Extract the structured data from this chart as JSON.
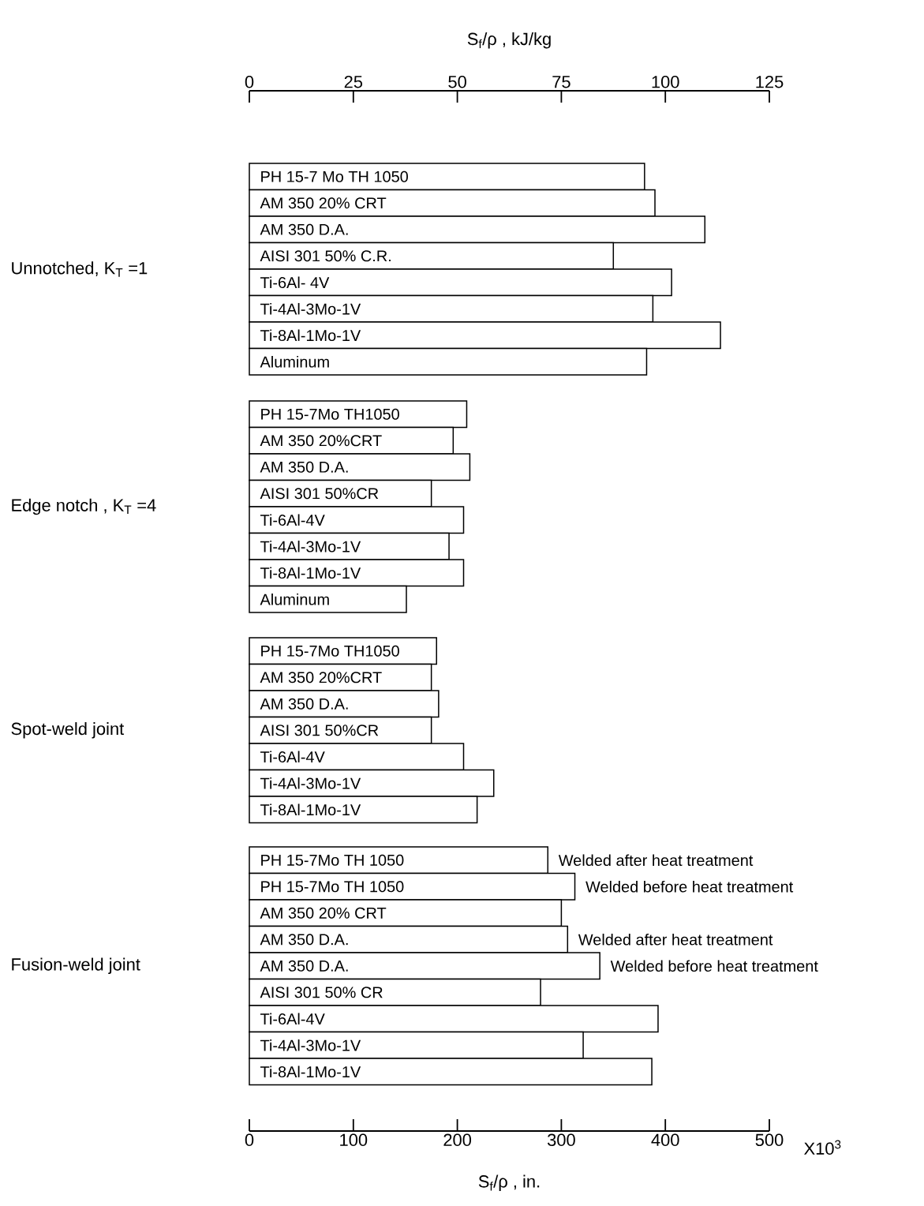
{
  "chart_data": [
    {
      "type": "bar",
      "orientation": "horizontal",
      "ylabel": "Unnotched, K$_{T}$ =1",
      "color": "#ffffff",
      "tick_labels": "x",
      "xlim": [
        0,
        500
      ],
      "x2lim": [
        0,
        125
      ],
      "x2ticks": [
        0,
        25,
        50,
        75,
        100,
        125
      ],
      "x2label": "S$_{f}$/ρ , kJ/kg",
      "categories": [
        "PH 15-7 Mo   TH 1050",
        "AM 350   20% CRT",
        "AM 350   D.A.",
        "AISI 301   50% C.R.",
        "Ti-6Al- 4V",
        "Ti-4Al-3Mo-1V",
        "Ti-8Al-1Mo-1V",
        "Aluminum"
      ],
      "values": [
        380,
        390,
        438,
        350,
        406,
        388,
        453,
        382
      ]
    },
    {
      "type": "bar",
      "orientation": "horizontal",
      "ylabel": "Edge notch , K$_{T}$ =4",
      "color": "#ffffff",
      "tick_labels": false,
      "xlim": [
        0,
        500
      ],
      "categories": [
        "PH 15-7Mo  TH1050",
        "AM 350 20%CRT",
        "AM 350  D.A.",
        "AISI 301 50%CR",
        "Ti-6Al-4V",
        "Ti-4Al-3Mo-1V",
        "Ti-8Al-1Mo-1V",
        "Aluminum"
      ],
      "values": [
        209,
        196,
        212,
        175,
        206,
        192,
        206,
        151
      ]
    },
    {
      "type": "bar",
      "orientation": "horizontal",
      "ylabel": "Spot-weld   joint",
      "color": "#ffffff",
      "tick_labels": false,
      "xlim": [
        0,
        500
      ],
      "categories": [
        "PH 15-7Mo TH1050",
        "AM 350  20%CRT",
        "AM 350  D.A.",
        "AISI 301  50%CR",
        "Ti-6Al-4V",
        "Ti-4Al-3Mo-1V",
        "Ti-8Al-1Mo-1V"
      ],
      "values": [
        180,
        175,
        182,
        175,
        206,
        235,
        219
      ]
    },
    {
      "type": "bar",
      "orientation": "horizontal",
      "ylabel": "Fusion-weld  joint",
      "color": "#ffffff",
      "tick_labels": "x",
      "xlim": [
        0,
        500
      ],
      "xticks": [
        0,
        100,
        200,
        300,
        400,
        500
      ],
      "xlabel": "S$_{f}$/ρ , in.",
      "categories": [
        "PH 15-7Mo  TH 1050",
        "PH 15-7Mo  TH 1050",
        "AM 350  20% CRT",
        "AM 350  D.A.",
        "AM 350  D.A.",
        "AISI 301  50% CR",
        "Ti-6Al-4V",
        "Ti-4Al-3Mo-1V",
        "Ti-8Al-1Mo-1V"
      ],
      "values": [
        287,
        313,
        300,
        306,
        337,
        280,
        393,
        321,
        387
      ],
      "annotations": [
        "Welded after heat treatment",
        "Welded before heat treatment",
        "Welded after heat treatment",
        "Welded before heat treatment",
        "X10$^{3}$"
      ]
    }
  ]
}
